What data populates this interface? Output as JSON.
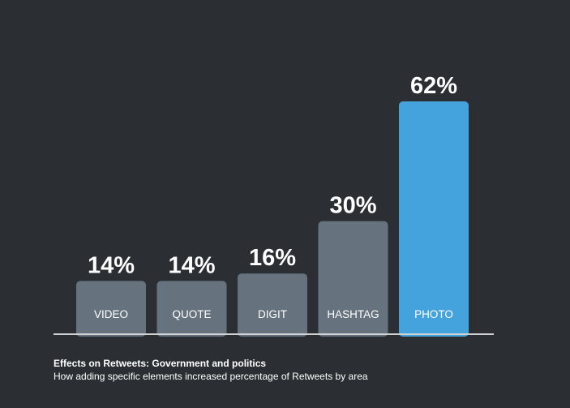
{
  "chart_data": {
    "type": "bar",
    "categories": [
      "VIDEO",
      "QUOTE",
      "DIGIT",
      "HASHTAG",
      "PHOTO"
    ],
    "values": [
      14,
      14,
      16,
      30,
      62
    ],
    "value_labels": [
      "14%",
      "14%",
      "16%",
      "30%",
      "62%"
    ],
    "ylim": [
      0,
      62
    ],
    "grid": false,
    "colors": {
      "bar": "#66737f",
      "highlight": "#44a2dc",
      "baseline": "#cfd3d6",
      "background": "#2b2f33"
    },
    "highlight_category": "PHOTO"
  },
  "caption": {
    "title": "Effects on Retweets: Government and politics",
    "subtitle": "How adding specific elements increased percentage of Retweets by area"
  }
}
